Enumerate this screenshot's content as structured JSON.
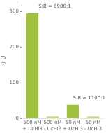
{
  "chart_data": {
    "type": "bar",
    "categories": [
      "500 nM\n+ UcHl3",
      "500 nM\n- UcHl3",
      "50 nM\n+ UcHl3",
      "50 nM\n- UcHl3"
    ],
    "values": [
      295,
      6,
      38,
      6
    ],
    "colors": [
      "#a0c040",
      "#c8d87a",
      "#a0c040",
      "#c8d87a"
    ],
    "ylabel": "RFU",
    "ylim": [
      0,
      320
    ],
    "yticks": [
      0,
      100,
      200,
      300
    ],
    "annotations": [
      {
        "text": "S:B = 6900:1",
        "x": 0.3,
        "y": 308
      },
      {
        "text": "S:B = 1100:1",
        "x": 2.3,
        "y": 50
      }
    ],
    "grid": false
  }
}
